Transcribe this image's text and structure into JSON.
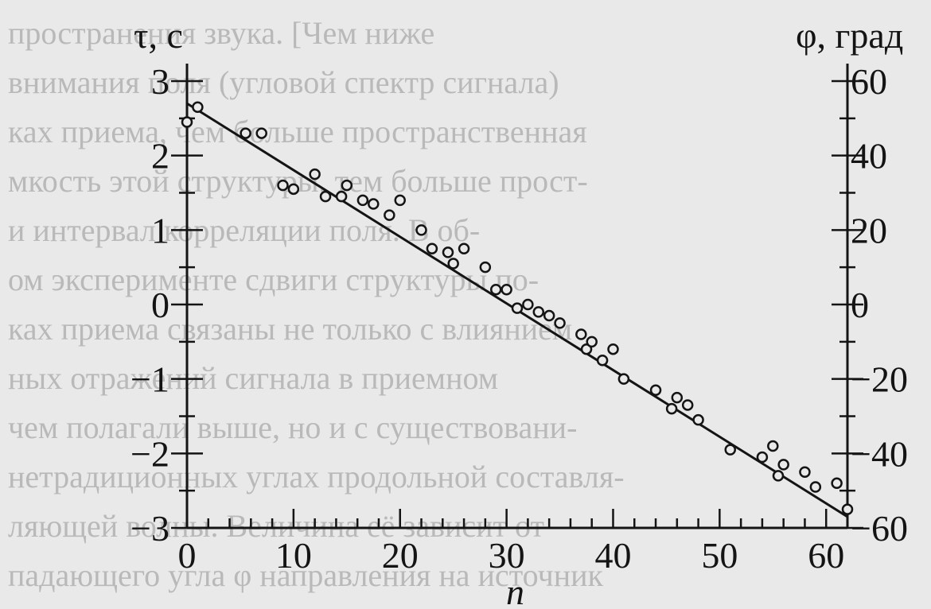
{
  "background_text": [
    "пространения звука. [Чем   ниже",
    "внимания поля (угловой спектр сигнала)",
    "ках приема, чем больше пространственная",
    "мкость этой структуры, тем больше прост-",
    "и интервал корреляции поля. В об-",
    "ом эксперименте сдвиги структуры по-",
    "ках приема связаны не только с влиянием",
    "ных отражений сигнала в приемном",
    "чем полагали выше, но и с существовани-",
    "нетрадиционных углах продольной составля-",
    "ляющей волны. Величина её зависит от",
    "падающего угла φ направления на источник"
  ],
  "chart_data": {
    "type": "scatter",
    "title": "",
    "xlabel": "n",
    "ylabel": "τ, с",
    "y2label": "φ, град",
    "xlim": [
      0,
      62
    ],
    "ylim": [
      -3,
      3
    ],
    "y2lim": [
      -60,
      60
    ],
    "x_ticks": [
      0,
      10,
      20,
      30,
      40,
      50,
      60
    ],
    "y_ticks": [
      -3,
      -2,
      -1,
      0,
      1,
      2,
      3
    ],
    "y2_ticks": [
      -60,
      -40,
      -20,
      0,
      20,
      40,
      60
    ],
    "x_tick_labels": [
      "0",
      "10",
      "20",
      "30",
      "40",
      "50",
      "60"
    ],
    "y_tick_labels": [
      "−3",
      "−2",
      "−1",
      "0",
      "1",
      "2",
      "3"
    ],
    "y2_tick_labels": [
      "−60",
      "−40",
      "−20",
      "0",
      "20",
      "40",
      "60"
    ],
    "grid": false,
    "series": [
      {
        "type": "scatter",
        "marker": "open-circle",
        "x": [
          0,
          1,
          5.5,
          7,
          9,
          10,
          12,
          13,
          14.5,
          15,
          16.5,
          17.5,
          19,
          20,
          22,
          23,
          24.5,
          25,
          26,
          28,
          29,
          30,
          31,
          32,
          33,
          34,
          35,
          37,
          37.5,
          38,
          39,
          40,
          41,
          44,
          45.5,
          46,
          47,
          48,
          51,
          54,
          55,
          55.5,
          56,
          58,
          59,
          61,
          62
        ],
        "y": [
          2.45,
          2.65,
          2.3,
          2.3,
          1.6,
          1.55,
          1.75,
          1.45,
          1.45,
          1.6,
          1.4,
          1.35,
          1.2,
          1.4,
          1.0,
          0.75,
          0.7,
          0.55,
          0.75,
          0.5,
          0.2,
          0.2,
          -0.05,
          0.0,
          -0.1,
          -0.15,
          -0.25,
          -0.4,
          -0.6,
          -0.5,
          -0.75,
          -0.6,
          -1.0,
          -1.15,
          -1.4,
          -1.25,
          -1.35,
          -1.55,
          -1.95,
          -2.05,
          -1.9,
          -2.3,
          -2.15,
          -2.25,
          -2.45,
          -2.4,
          -2.75
        ]
      },
      {
        "type": "line",
        "x": [
          0,
          62
        ],
        "y": [
          2.7,
          -2.85
        ]
      }
    ]
  }
}
